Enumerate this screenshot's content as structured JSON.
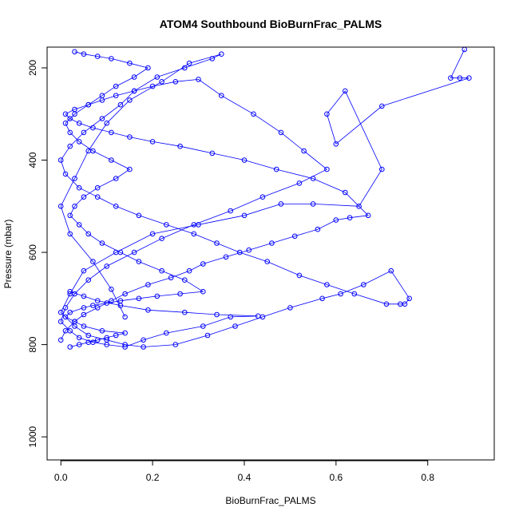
{
  "chart_data": {
    "type": "scatter",
    "title": "ATOM4 Southbound BioBurnFrac_PALMS",
    "xlabel": "BioBurnFrac_PALMS",
    "ylabel": "Pressure (mbar)",
    "xlim": [
      -0.03,
      0.945
    ],
    "ylim": [
      1050,
      155
    ],
    "y_inverted": true,
    "x_ticks": [
      "0.0",
      "0.2",
      "0.4",
      "0.6",
      "0.8"
    ],
    "y_ticks": [
      "200",
      "400",
      "600",
      "800",
      "1000"
    ],
    "marker": "open circle",
    "line_connected": true,
    "grid": false,
    "colors": {
      "series": "#0000ff",
      "axis": "#000000"
    },
    "series": [
      {
        "x": [
          0.88,
          0.85,
          0.87,
          0.89,
          0.7,
          0.6,
          0.58,
          0.62,
          0.7,
          0.65,
          0.55,
          0.48,
          0.4,
          0.3,
          0.2,
          0.12,
          0.05,
          0.02,
          0.0,
          0.03,
          0.06,
          0.1,
          0.14,
          0.18,
          0.25,
          0.32,
          0.38,
          0.44,
          0.5,
          0.57,
          0.61,
          0.66,
          0.72,
          0.76,
          0.75,
          0.74,
          0.71,
          0.64,
          0.58,
          0.52,
          0.45,
          0.39,
          0.34,
          0.29,
          0.23,
          0.17,
          0.12,
          0.08,
          0.04,
          0.01,
          0.0,
          0.02,
          0.05,
          0.09,
          0.13,
          0.16,
          0.21,
          0.27,
          0.33,
          0.35,
          0.28,
          0.22,
          0.15,
          0.1,
          0.06,
          0.03,
          0.0,
          0.02,
          0.07,
          0.11,
          0.14
        ],
        "y": [
          160,
          222,
          222,
          222,
          283,
          365,
          300,
          250,
          420,
          500,
          495,
          495,
          520,
          540,
          560,
          600,
          640,
          690,
          730,
          760,
          780,
          790,
          800,
          805,
          800,
          780,
          760,
          740,
          720,
          700,
          690,
          670,
          640,
          700,
          712,
          712,
          712,
          690,
          670,
          650,
          620,
          600,
          580,
          560,
          540,
          520,
          500,
          480,
          460,
          430,
          400,
          370,
          340,
          310,
          280,
          250,
          220,
          200,
          180,
          170,
          190,
          230,
          270,
          320,
          380,
          440,
          500,
          560,
          620,
          680,
          740
        ]
      },
      {
        "x": [
          0.0,
          0.01,
          0.03,
          0.05,
          0.08,
          0.11,
          0.14,
          0.19,
          0.24,
          0.28,
          0.31,
          0.36,
          0.41,
          0.46,
          0.51,
          0.56,
          0.6,
          0.63,
          0.67,
          0.62,
          0.55,
          0.47,
          0.4,
          0.33,
          0.26,
          0.2,
          0.15,
          0.11,
          0.07,
          0.04,
          0.02,
          0.01,
          0.03,
          0.06,
          0.09,
          0.12,
          0.16,
          0.2,
          0.25,
          0.3,
          0.35,
          0.42,
          0.48,
          0.53,
          0.58,
          0.52,
          0.44,
          0.37,
          0.29,
          0.22,
          0.16,
          0.1,
          0.06,
          0.03,
          0.01,
          0.0,
          0.02,
          0.04,
          0.07,
          0.1,
          0.14,
          0.18,
          0.23,
          0.31,
          0.37,
          0.43,
          0.34,
          0.27,
          0.19,
          0.13,
          0.08,
          0.05,
          0.02
        ],
        "y": [
          790,
          770,
          750,
          735,
          720,
          705,
          690,
          670,
          655,
          640,
          625,
          610,
          595,
          580,
          565,
          550,
          530,
          525,
          520,
          470,
          440,
          420,
          400,
          385,
          370,
          360,
          350,
          340,
          330,
          320,
          310,
          300,
          290,
          280,
          270,
          260,
          250,
          240,
          230,
          225,
          260,
          300,
          340,
          380,
          420,
          450,
          480,
          510,
          540,
          570,
          600,
          630,
          660,
          690,
          720,
          750,
          770,
          785,
          795,
          800,
          805,
          790,
          775,
          760,
          740,
          738,
          735,
          730,
          725,
          715,
          705,
          695,
          685
        ]
      },
      {
        "x": [
          0.02,
          0.04,
          0.06,
          0.08,
          0.1,
          0.12,
          0.14,
          0.09,
          0.05,
          0.03,
          0.01,
          0.02,
          0.05,
          0.07,
          0.1,
          0.13,
          0.17,
          0.21,
          0.26,
          0.31,
          0.27,
          0.22,
          0.17,
          0.13,
          0.09,
          0.06,
          0.04,
          0.02,
          0.03,
          0.05,
          0.08,
          0.12,
          0.15,
          0.11,
          0.07,
          0.04,
          0.02,
          0.01,
          0.03,
          0.06,
          0.09,
          0.12,
          0.16,
          0.19,
          0.15,
          0.11,
          0.08,
          0.05,
          0.03
        ],
        "y": [
          805,
          800,
          795,
          790,
          785,
          780,
          775,
          770,
          760,
          750,
          740,
          730,
          720,
          715,
          710,
          705,
          700,
          695,
          690,
          685,
          660,
          640,
          620,
          600,
          580,
          560,
          540,
          520,
          500,
          480,
          460,
          440,
          420,
          400,
          380,
          360,
          340,
          320,
          300,
          280,
          260,
          240,
          220,
          200,
          190,
          180,
          175,
          170,
          165
        ]
      }
    ]
  }
}
